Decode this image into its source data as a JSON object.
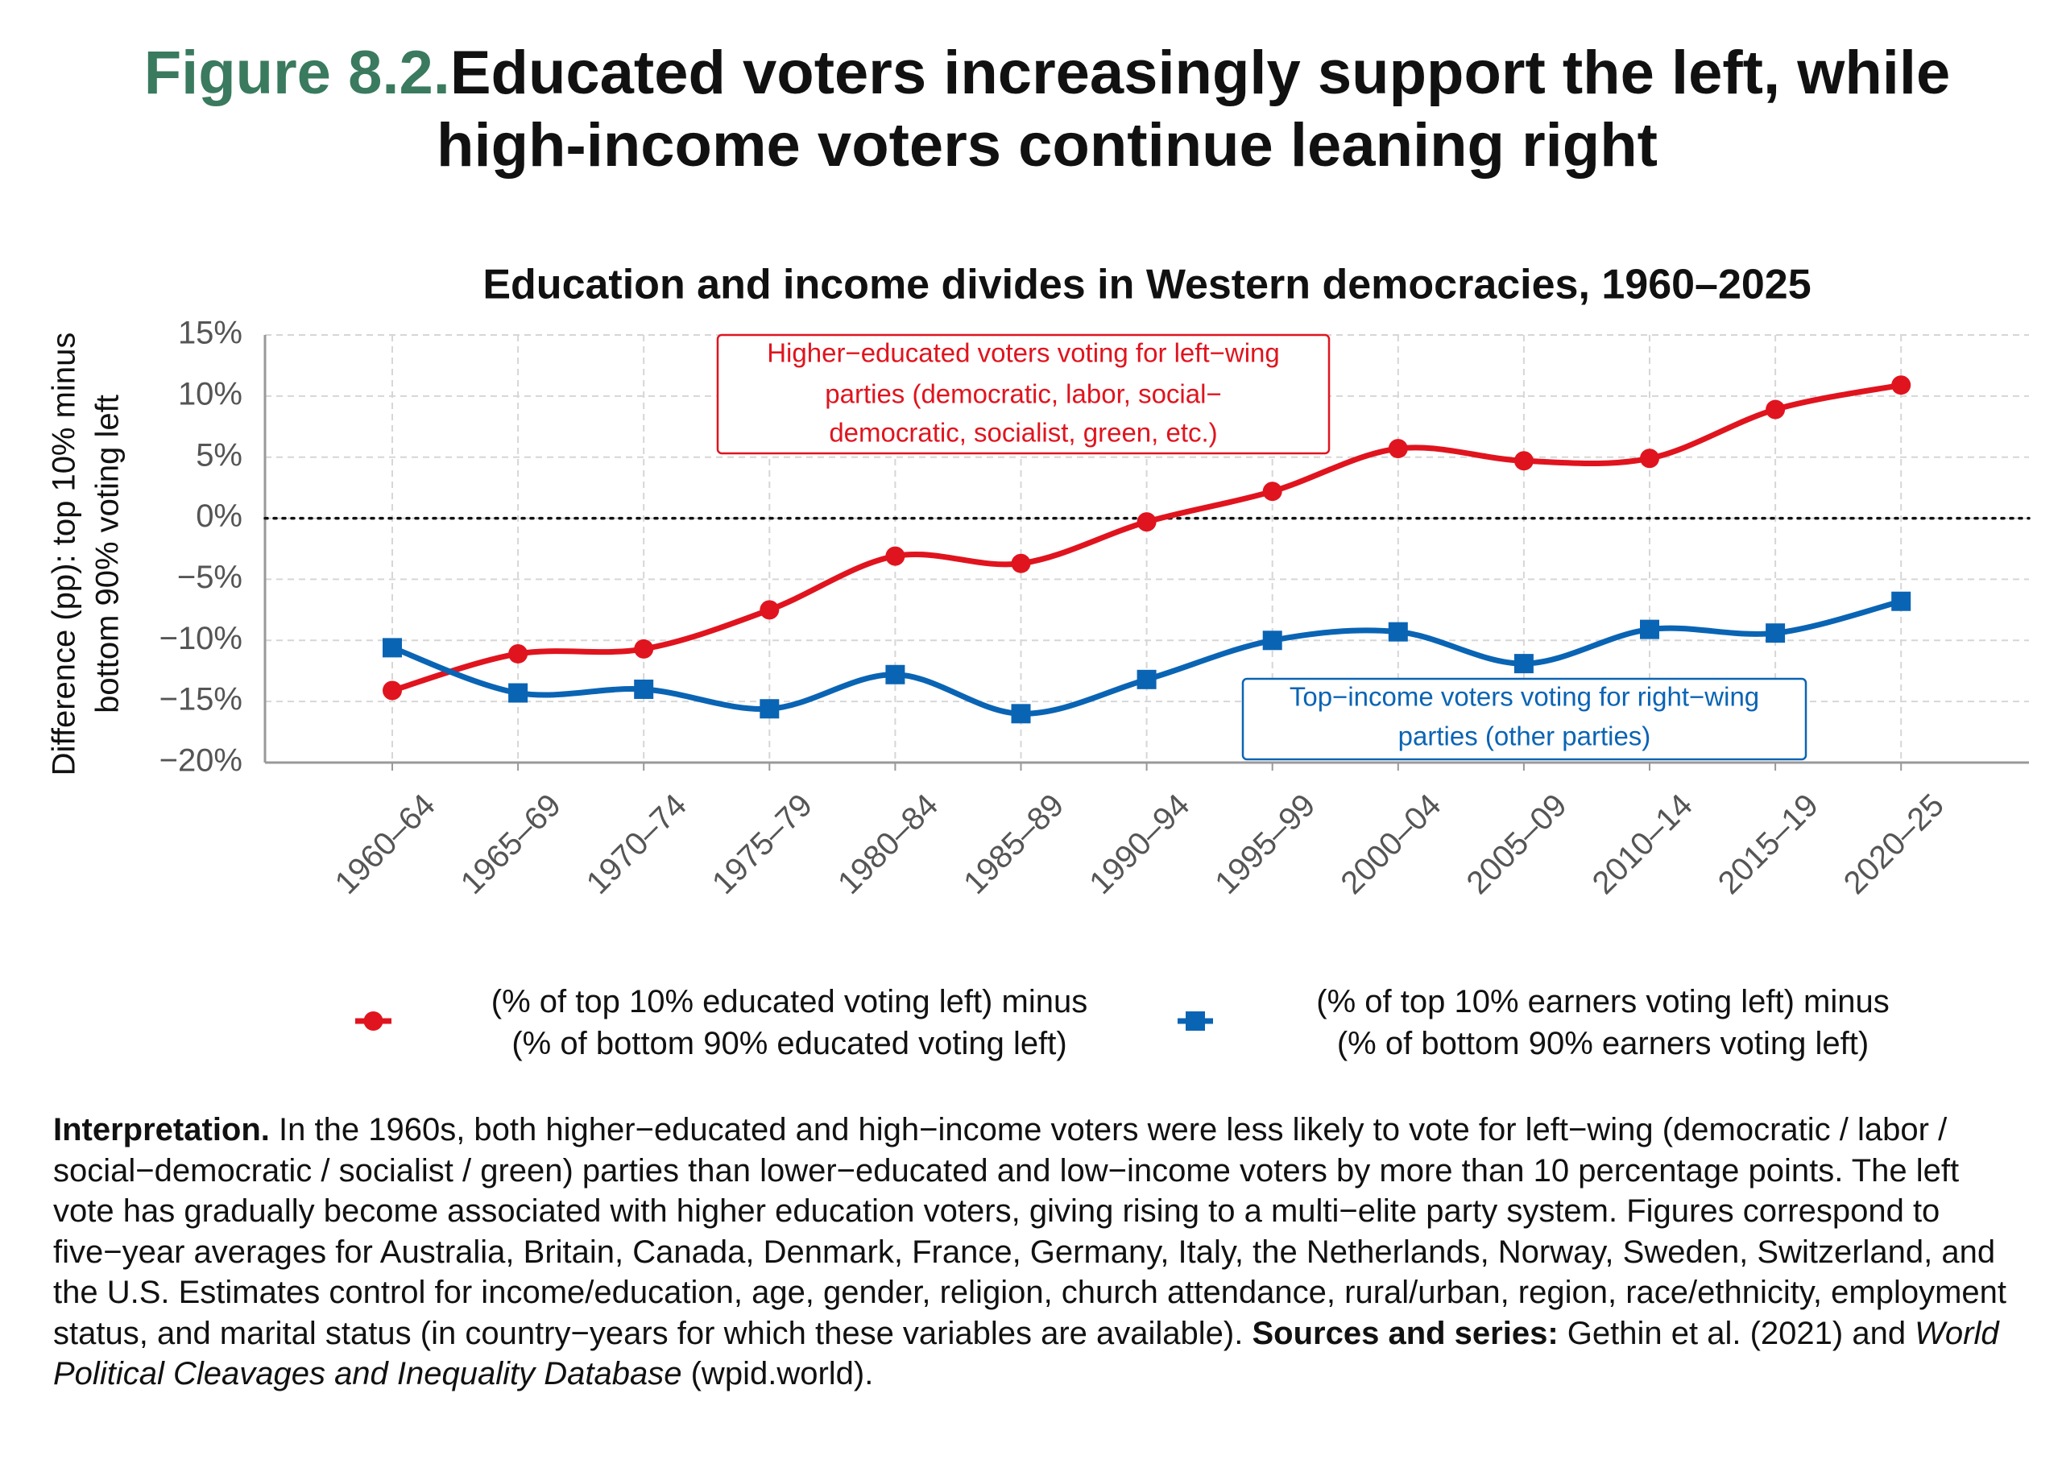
{
  "title_prefix": "Figure 8.2.",
  "title_lines": [
    "Educated voters increasingly support the left, while",
    "high-income voters continue leaning right"
  ],
  "chart_data": {
    "type": "line",
    "title": "Education and income divides in Western democracies, 1960–2025",
    "y_label": [
      "Difference (pp): top 10% minus",
      "bottom 90% voting left"
    ],
    "categories": [
      "1960–64",
      "1965–69",
      "1970–74",
      "1975–79",
      "1980–84",
      "1985–89",
      "1990–94",
      "1995–99",
      "2000–04",
      "2005–09",
      "2010–14",
      "2015–19",
      "2020–25"
    ],
    "series": [
      {
        "name": "(% of top 10% educated voting left) minus\n(% of bottom 90% educated voting left)",
        "color": "#e0141e",
        "marker": "circle",
        "values": [
          -14.1,
          -11.1,
          -10.7,
          -7.5,
          -3.1,
          -3.7,
          -0.3,
          2.2,
          5.7,
          4.7,
          4.9,
          8.9,
          10.9
        ]
      },
      {
        "name": "(% of top 10% earners voting left) minus\n(% of bottom 90% earners voting left)",
        "color": "#0a64b4",
        "marker": "square",
        "values": [
          -10.6,
          -14.3,
          -14.0,
          -15.6,
          -12.8,
          -16.0,
          -13.2,
          -10.0,
          -9.3,
          -11.9,
          -9.1,
          -9.4,
          -6.8
        ]
      }
    ],
    "ylim": [
      -20,
      15
    ],
    "yticks": [
      {
        "value": -20,
        "label": "−20%"
      },
      {
        "value": -15,
        "label": "−15%"
      },
      {
        "value": -10,
        "label": "−10%"
      },
      {
        "value": -5,
        "label": "−5%"
      },
      {
        "value": 0,
        "label": "0%"
      },
      {
        "value": 5,
        "label": "5%"
      },
      {
        "value": 10,
        "label": "10%"
      },
      {
        "value": 15,
        "label": "15%"
      }
    ],
    "reference_line": 0,
    "grid": true,
    "annotations": [
      {
        "lines": [
          "Higher−educated voters voting for left−wing",
          "parties (democratic, labor, social−",
          "democratic, socialist, green, etc.)"
        ],
        "color": "#e0141e"
      },
      {
        "lines": [
          "Top−income voters voting for right−wing",
          "parties (other parties)"
        ],
        "color": "#0a64b4"
      }
    ]
  },
  "note": {
    "label": "Interpretation.",
    "text": " In the 1960s, both higher−educated and high−income voters were less likely to vote for left−wing (democratic / labor / social−democratic / socialist / green) parties than lower−educated and low−income voters by more than 10 percentage points. The left vote has gradually become associated with higher education voters, giving rising to a multi−elite party system. Figures correspond to five−year averages for Australia, Britain, Canada, Denmark, France, Germany, Italy, the Netherlands, Norway, Sweden, Switzerland, and the U.S. Estimates control for income/education, age, gender, religion, church attendance, rural/urban, region, race/ethnicity, employment status, and marital status (in country−years for which these variables are available). ",
    "sources_label": "Sources and series:",
    "sources_text": " Gethin et al. (2021) and ",
    "database": "World Political Cleavages and Inequality Database",
    "tail": " (wpid.world)."
  }
}
